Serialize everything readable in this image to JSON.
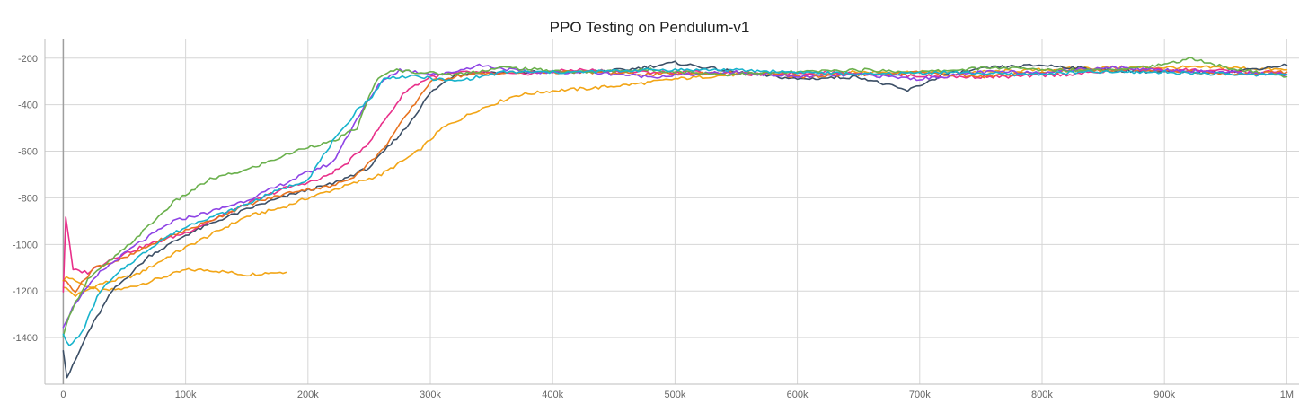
{
  "chart_data": {
    "type": "line",
    "title": "PPO Testing on Pendulum-v1",
    "xlabel": "",
    "ylabel": "",
    "xlim": [
      -15000,
      1010000
    ],
    "ylim": [
      -1600,
      -120
    ],
    "xticks": [
      {
        "value": 0,
        "label": "0"
      },
      {
        "value": 100000,
        "label": "100k"
      },
      {
        "value": 200000,
        "label": "200k"
      },
      {
        "value": 300000,
        "label": "300k"
      },
      {
        "value": 400000,
        "label": "400k"
      },
      {
        "value": 500000,
        "label": "500k"
      },
      {
        "value": 600000,
        "label": "600k"
      },
      {
        "value": 700000,
        "label": "700k"
      },
      {
        "value": 800000,
        "label": "800k"
      },
      {
        "value": 900000,
        "label": "900k"
      },
      {
        "value": 1000000,
        "label": "1M"
      }
    ],
    "yticks": [
      {
        "value": -200,
        "label": "-200"
      },
      {
        "value": -400,
        "label": "-400"
      },
      {
        "value": -600,
        "label": "-600"
      },
      {
        "value": -800,
        "label": "-800"
      },
      {
        "value": -1000,
        "label": "-1000"
      },
      {
        "value": -1200,
        "label": "-1200"
      },
      {
        "value": -1400,
        "label": "-1400"
      }
    ],
    "grid": true,
    "legend": "none",
    "series": [
      {
        "color": "#f2a516",
        "x": [
          0,
          5000,
          15000,
          30000,
          50000,
          70000,
          100000,
          120000,
          150000,
          170000,
          182000
        ],
        "y": [
          -1150,
          -1140,
          -1170,
          -1200,
          -1190,
          -1160,
          -1110,
          -1110,
          -1130,
          -1120,
          -1120
        ]
      },
      {
        "color": "#f2a516",
        "x": [
          0,
          10000,
          30000,
          60000,
          90000,
          120000,
          150000,
          180000,
          200000,
          230000,
          260000,
          290000,
          310000,
          340000,
          370000,
          400000,
          430000,
          470000,
          500000,
          550000,
          600000,
          650000,
          700000,
          750000,
          800000,
          850000,
          900000,
          950000,
          1000000
        ],
        "y": [
          -1180,
          -1220,
          -1170,
          -1130,
          -1040,
          -960,
          -880,
          -840,
          -800,
          -750,
          -700,
          -600,
          -500,
          -420,
          -360,
          -340,
          -330,
          -310,
          -290,
          -270,
          -270,
          -260,
          -260,
          -260,
          -250,
          -240,
          -240,
          -240,
          -250
        ]
      },
      {
        "color": "#3c4f66",
        "x": [
          0,
          3000,
          8000,
          20000,
          40000,
          70000,
          100000,
          130000,
          160000,
          190000,
          220000,
          250000,
          280000,
          300000,
          320000,
          350000,
          380000,
          420000,
          460000,
          500000,
          550000,
          600000,
          650000,
          690000,
          720000,
          760000,
          800000,
          850000,
          900000,
          950000,
          1000000
        ],
        "y": [
          -1450,
          -1570,
          -1520,
          -1380,
          -1200,
          -1050,
          -960,
          -890,
          -830,
          -780,
          -740,
          -670,
          -500,
          -350,
          -270,
          -260,
          -260,
          -260,
          -250,
          -220,
          -260,
          -290,
          -280,
          -340,
          -270,
          -240,
          -230,
          -250,
          -260,
          -260,
          -230
        ]
      },
      {
        "color": "#e8308a",
        "x": [
          0,
          2000,
          8000,
          20000,
          40000,
          70000,
          100000,
          140000,
          180000,
          210000,
          230000,
          250000,
          265000,
          280000,
          300000,
          330000,
          370000,
          420000,
          470000,
          520000,
          570000,
          620000,
          670000,
          720000,
          770000,
          820000,
          870000,
          920000,
          970000,
          1000000
        ],
        "y": [
          -1200,
          -880,
          -1110,
          -1120,
          -1060,
          -1000,
          -950,
          -850,
          -760,
          -720,
          -660,
          -560,
          -450,
          -340,
          -280,
          -260,
          -270,
          -250,
          -260,
          -260,
          -270,
          -260,
          -270,
          -280,
          -280,
          -270,
          -250,
          -250,
          -260,
          -260
        ]
      },
      {
        "color": "#e8731f",
        "x": [
          0,
          10000,
          25000,
          50000,
          80000,
          110000,
          150000,
          190000,
          220000,
          240000,
          260000,
          280000,
          300000,
          330000,
          380000,
          430000,
          480000,
          550000,
          600000,
          650000,
          700000,
          750000,
          800000,
          850000,
          900000,
          950000,
          1000000
        ],
        "y": [
          -1150,
          -1200,
          -1100,
          -1060,
          -980,
          -920,
          -830,
          -770,
          -750,
          -700,
          -600,
          -450,
          -300,
          -270,
          -260,
          -260,
          -270,
          -260,
          -280,
          -270,
          -260,
          -280,
          -260,
          -250,
          -250,
          -270,
          -260
        ]
      },
      {
        "color": "#8e44e5",
        "x": [
          0,
          10000,
          30000,
          60000,
          90000,
          120000,
          150000,
          180000,
          200000,
          220000,
          240000,
          260000,
          275000,
          290000,
          310000,
          340000,
          380000,
          430000,
          480000,
          550000,
          600000,
          650000,
          700000,
          750000,
          800000,
          850000,
          900000,
          950000,
          1000000
        ],
        "y": [
          -1350,
          -1250,
          -1120,
          -1000,
          -900,
          -860,
          -810,
          -740,
          -690,
          -650,
          -460,
          -300,
          -250,
          -260,
          -270,
          -230,
          -260,
          -260,
          -280,
          -260,
          -280,
          -270,
          -290,
          -260,
          -260,
          -240,
          -250,
          -260,
          -270
        ]
      },
      {
        "color": "#6ab04c",
        "x": [
          0,
          5000,
          20000,
          50000,
          90000,
          120000,
          150000,
          180000,
          200000,
          220000,
          240000,
          255000,
          270000,
          290000,
          320000,
          360000,
          420000,
          480000,
          540000,
          600000,
          650000,
          700000,
          760000,
          800000,
          850000,
          900000,
          920000,
          950000,
          1000000
        ],
        "y": [
          -1400,
          -1300,
          -1150,
          -1020,
          -820,
          -720,
          -680,
          -620,
          -580,
          -560,
          -500,
          -300,
          -250,
          -260,
          -270,
          -240,
          -260,
          -250,
          -270,
          -260,
          -250,
          -260,
          -240,
          -250,
          -250,
          -230,
          -200,
          -240,
          -280
        ]
      },
      {
        "color": "#17b3cc",
        "x": [
          0,
          5000,
          15000,
          30000,
          50000,
          80000,
          110000,
          140000,
          170000,
          200000,
          220000,
          230000,
          240000,
          250000,
          262000,
          272000,
          290000,
          320000,
          360000,
          420000,
          480000,
          540000,
          600000,
          660000,
          720000,
          780000,
          840000,
          900000,
          960000,
          1000000
        ],
        "y": [
          -1380,
          -1440,
          -1380,
          -1200,
          -1100,
          -980,
          -900,
          -850,
          -780,
          -720,
          -560,
          -500,
          -420,
          -380,
          -290,
          -280,
          -280,
          -300,
          -260,
          -260,
          -250,
          -250,
          -260,
          -270,
          -260,
          -270,
          -260,
          -260,
          -270,
          -270
        ]
      }
    ]
  }
}
